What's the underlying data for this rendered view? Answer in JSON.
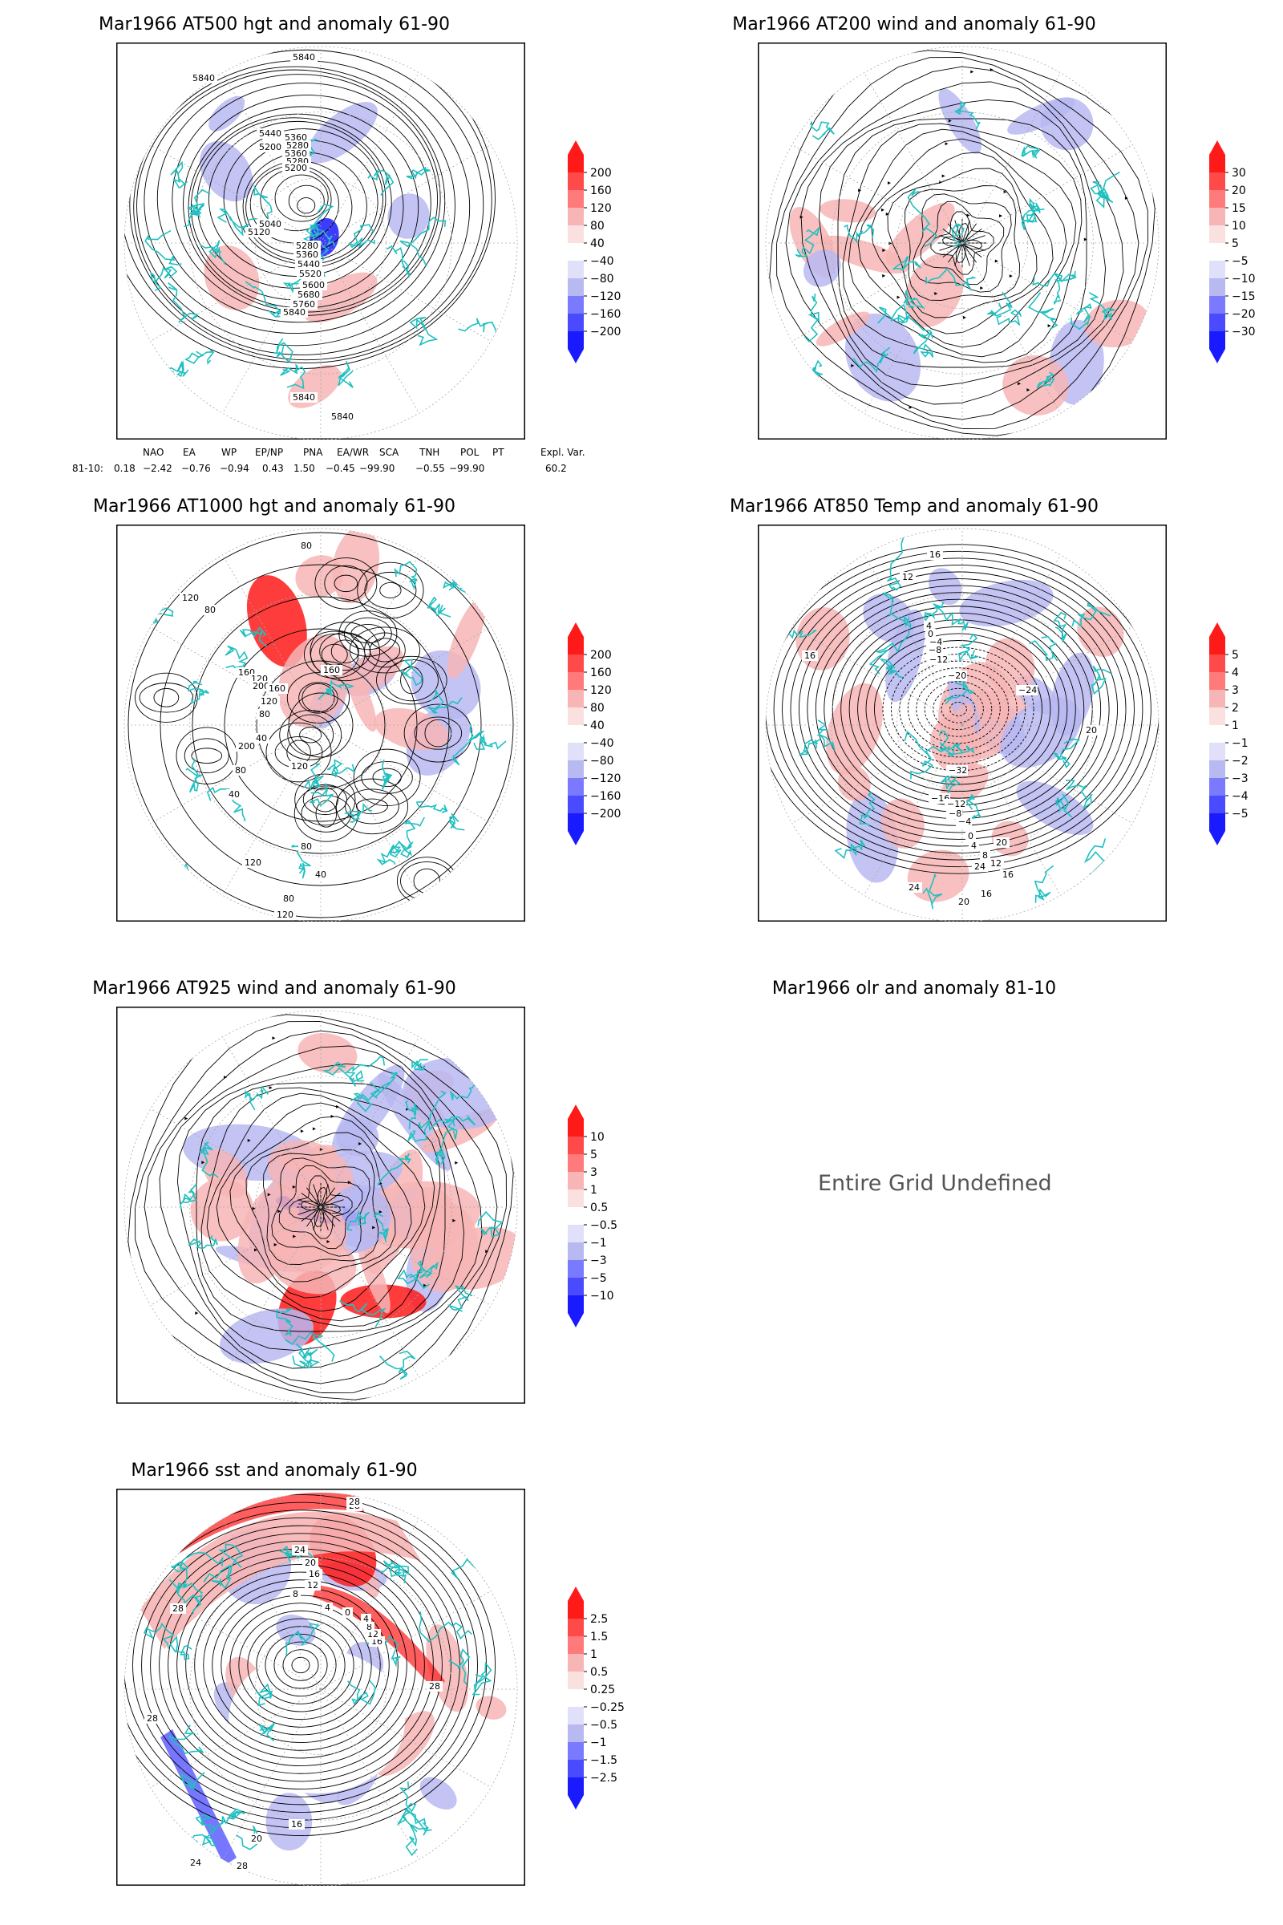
{
  "panels": [
    {
      "id": "z500",
      "title": "Mar1966 AT500 hgt and anomaly 61-90",
      "contour_labels": [
        "5840",
        "5840",
        "5440",
        "5360",
        "5280",
        "5200",
        "5360",
        "5280",
        "5200",
        "5040",
        "5120",
        "5280",
        "5360",
        "5440",
        "5520",
        "5600",
        "5680",
        "5760",
        "5840",
        "5840",
        "5840"
      ],
      "colorbar": [
        "200",
        "160",
        "120",
        "80",
        "40",
        "−40",
        "−80",
        "−120",
        "−160",
        "−200"
      ]
    },
    {
      "id": "wind200",
      "title": "Mar1966 AT200 wind and anomaly 61-90",
      "colorbar": [
        "30",
        "20",
        "15",
        "10",
        "5",
        "−5",
        "−10",
        "−15",
        "−20",
        "−30"
      ]
    },
    {
      "id": "z1000",
      "title": "Mar1966 AT1000 hgt and anomaly 61-90",
      "contour_labels": [
        "80",
        "120",
        "80",
        "160",
        "120",
        "200",
        "160",
        "120",
        "80",
        "40",
        "200",
        "80",
        "160",
        "120",
        "40",
        "80",
        "120",
        "80",
        "120",
        "40",
        "80"
      ],
      "colorbar": [
        "200",
        "160",
        "120",
        "80",
        "40",
        "−40",
        "−80",
        "−120",
        "−160",
        "−200"
      ]
    },
    {
      "id": "t850",
      "title": "Mar1966 AT850 Temp and anomaly 61-90",
      "contour_labels": [
        "16",
        "12",
        "16",
        "4",
        "0",
        "−4",
        "−8",
        "−12",
        "−20",
        "−24",
        "−32",
        "−16",
        "−12",
        "−8",
        "−4",
        "0",
        "4",
        "8",
        "12",
        "16",
        "20",
        "24",
        "24",
        "20",
        "16",
        "20"
      ],
      "colorbar": [
        "5",
        "4",
        "3",
        "2",
        "1",
        "−1",
        "−2",
        "−3",
        "−4",
        "−5"
      ]
    },
    {
      "id": "wind925",
      "title": "Mar1966 AT925 wind and anomaly 61-90",
      "colorbar": [
        "10",
        "5",
        "3",
        "1",
        "0.5",
        "−0.5",
        "−1",
        "−3",
        "−5",
        "−10"
      ]
    },
    {
      "id": "olr",
      "title": "Mar1966 olr and anomaly 81-10",
      "message": "Entire Grid Undefined"
    },
    {
      "id": "sst",
      "title": "Mar1966 sst and anomaly 61-90",
      "contour_labels": [
        "28",
        "24",
        "20",
        "16",
        "12",
        "8",
        "4",
        "0",
        "28",
        "28",
        "28",
        "16",
        "12",
        "8",
        "4",
        "28",
        "16",
        "20",
        "24",
        "28"
      ],
      "colorbar": [
        "2.5",
        "1.5",
        "1",
        "0.5",
        "0.25",
        "−0.25",
        "−0.5",
        "−1",
        "−1.5",
        "−2.5"
      ]
    }
  ],
  "indices": {
    "headers": [
      "NAO",
      "EA",
      "WP",
      "EP/NP",
      "PNA",
      "EA/WR",
      "SCA",
      "TNH",
      "POL",
      "PT",
      "Expl. Var."
    ],
    "row_label": "81-10:",
    "values": [
      "0.18",
      "−2.42",
      "−0.76",
      "−0.94",
      "0.43",
      "1.50",
      "−0.45",
      "−99.90",
      "−0.55",
      "−99.90",
      "60.2"
    ]
  },
  "colors": {
    "positive_strong": "#ff1a1a",
    "positive_light": "#f7b5b5",
    "negative_light": "#b9b9f2",
    "negative_strong": "#1a1aff",
    "coastline": "#20c0c0",
    "contour": "#000000",
    "graticule": "#aaaaaa"
  }
}
